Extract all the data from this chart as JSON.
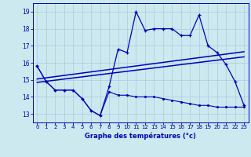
{
  "xlabel": "Graphe des températures (°c)",
  "hours": [
    0,
    1,
    2,
    3,
    4,
    5,
    6,
    7,
    8,
    9,
    10,
    11,
    12,
    13,
    14,
    15,
    16,
    17,
    18,
    19,
    20,
    21,
    22,
    23
  ],
  "temp_curve": [
    15.8,
    14.9,
    14.4,
    14.4,
    14.4,
    13.9,
    13.2,
    12.9,
    14.6,
    16.8,
    16.6,
    19.0,
    17.9,
    18.0,
    18.0,
    18.0,
    17.6,
    17.6,
    18.8,
    17.0,
    16.6,
    15.9,
    14.9,
    13.5
  ],
  "temp_low": [
    15.8,
    14.9,
    14.4,
    14.4,
    14.4,
    13.9,
    13.2,
    12.9,
    14.3,
    14.1,
    14.1,
    14.0,
    14.0,
    14.0,
    13.9,
    13.8,
    13.7,
    13.6,
    13.5,
    13.5,
    13.4,
    13.4,
    13.4,
    13.4
  ],
  "trend1_x": [
    0,
    23
  ],
  "trend1_y": [
    14.85,
    16.35
  ],
  "trend2_x": [
    0,
    23
  ],
  "trend2_y": [
    15.05,
    16.65
  ],
  "ylim": [
    12.5,
    19.5
  ],
  "xlim": [
    -0.5,
    23.5
  ],
  "yticks": [
    13,
    14,
    15,
    16,
    17,
    18,
    19
  ],
  "xticks": [
    0,
    1,
    2,
    3,
    4,
    5,
    6,
    7,
    8,
    9,
    10,
    11,
    12,
    13,
    14,
    15,
    16,
    17,
    18,
    19,
    20,
    21,
    22,
    23
  ],
  "bg_color": "#cce9f0",
  "line_color": "#0000bb",
  "grid_color": "#aaccdd"
}
